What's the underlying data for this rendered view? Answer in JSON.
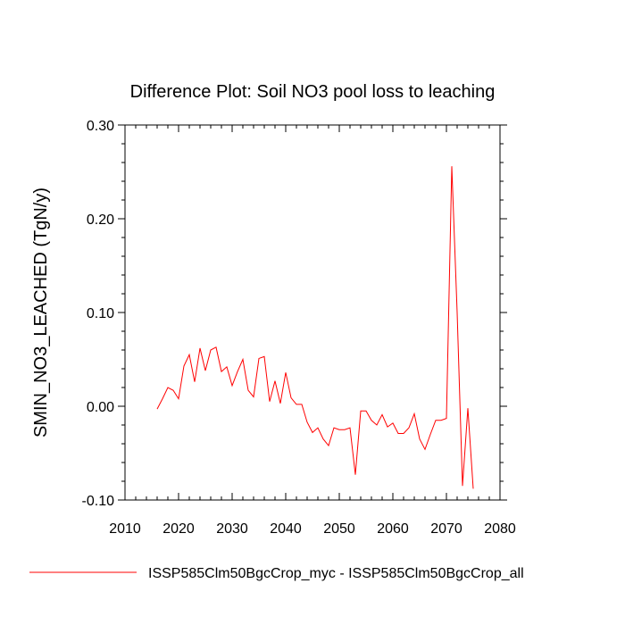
{
  "chart_data": {
    "type": "line",
    "title": "Difference Plot: Soil NO3 pool loss to leaching",
    "xlabel": "",
    "ylabel": "SMIN_NO3_LEACHED  (TgN/y)",
    "xlim": [
      2010,
      2080
    ],
    "ylim": [
      -0.1,
      0.3
    ],
    "x_ticks": [
      2010,
      2020,
      2030,
      2040,
      2050,
      2060,
      2070,
      2080
    ],
    "x_tick_labels": [
      "2010",
      "2020",
      "2030",
      "2040",
      "2050",
      "2060",
      "2070",
      "2080"
    ],
    "y_ticks": [
      -0.1,
      0.0,
      0.1,
      0.2,
      0.3
    ],
    "y_tick_labels": [
      "-0.10",
      "0.00",
      "0.10",
      "0.20",
      "0.30"
    ],
    "grid": false,
    "legend_position": "bottom",
    "series": [
      {
        "name": "ISSP585Clm50BgcCrop_myc - ISSP585Clm50BgcCrop_all",
        "color": "#ff0000",
        "x": [
          2016,
          2017,
          2018,
          2019,
          2020,
          2021,
          2022,
          2023,
          2024,
          2025,
          2026,
          2027,
          2028,
          2029,
          2030,
          2031,
          2032,
          2033,
          2034,
          2035,
          2036,
          2037,
          2038,
          2039,
          2040,
          2041,
          2042,
          2043,
          2044,
          2045,
          2046,
          2047,
          2048,
          2049,
          2050,
          2051,
          2052,
          2053,
          2054,
          2055,
          2056,
          2057,
          2058,
          2059,
          2060,
          2061,
          2062,
          2063,
          2064,
          2065,
          2066,
          2067,
          2068,
          2069,
          2070,
          2071,
          2072,
          2073,
          2074,
          2075
        ],
        "y": [
          -0.003,
          0.008,
          0.02,
          0.017,
          0.008,
          0.043,
          0.055,
          0.026,
          0.062,
          0.038,
          0.06,
          0.063,
          0.037,
          0.042,
          0.022,
          0.037,
          0.05,
          0.017,
          0.01,
          0.051,
          0.053,
          0.005,
          0.027,
          0.003,
          0.036,
          0.009,
          0.002,
          0.002,
          -0.017,
          -0.028,
          -0.023,
          -0.035,
          -0.042,
          -0.023,
          -0.025,
          -0.025,
          -0.023,
          -0.073,
          -0.005,
          -0.005,
          -0.015,
          -0.02,
          -0.009,
          -0.022,
          -0.018,
          -0.029,
          -0.029,
          -0.023,
          -0.008,
          -0.035,
          -0.046,
          -0.03,
          -0.015,
          -0.015,
          -0.013,
          0.256,
          0.1,
          -0.085,
          -0.002,
          -0.088
        ]
      }
    ]
  }
}
